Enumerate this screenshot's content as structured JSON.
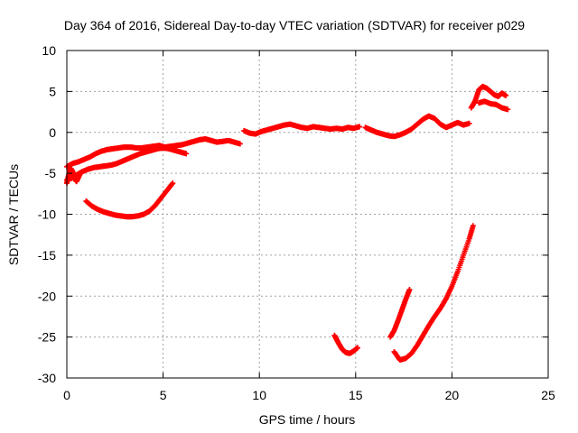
{
  "chart_data": {
    "type": "scatter",
    "title": "Day 364 of 2016, Sidereal Day-to-day VTEC variation (SDTVAR) for receiver p029",
    "xlabel": "GPS time / hours",
    "ylabel": "SDTVAR / TECUs",
    "xlim": [
      0,
      25
    ],
    "ylim": [
      -30,
      10
    ],
    "xticks": [
      0,
      5,
      10,
      15,
      20,
      25
    ],
    "yticks": [
      -30,
      -25,
      -20,
      -15,
      -10,
      -5,
      0,
      5,
      10
    ],
    "grid": true,
    "marker": "plus",
    "color": "#ff0000",
    "series": [
      {
        "segments": [
          {
            "x": [
              0,
              0.3,
              0.6,
              0.9,
              1.2,
              1.5,
              1.8,
              2.1,
              2.4,
              2.7,
              3.0,
              3.3,
              3.6,
              3.9,
              4.2,
              4.5,
              4.8,
              5.1,
              5.4,
              5.7,
              6.0,
              6.3,
              6.6,
              6.9,
              7.2,
              7.5,
              7.8,
              8.1,
              8.4,
              8.7,
              9.0
            ],
            "y": [
              -4.2,
              -3.8,
              -3.6,
              -3.3,
              -3.0,
              -2.6,
              -2.3,
              -2.1,
              -2.0,
              -1.9,
              -1.8,
              -1.8,
              -1.9,
              -1.9,
              -1.8,
              -1.7,
              -1.6,
              -1.8,
              -1.7,
              -1.6,
              -1.5,
              -1.3,
              -1.1,
              -0.9,
              -0.8,
              -1.0,
              -1.2,
              -1.1,
              -1.0,
              -1.2,
              -1.4
            ]
          },
          {
            "x": [
              0,
              0.25,
              0.5,
              0.8,
              1.1,
              1.4,
              1.7,
              2.0,
              2.3,
              2.6,
              2.9,
              3.2,
              3.5,
              3.8,
              4.1,
              4.4,
              4.7,
              5.0,
              5.3,
              5.6,
              5.9,
              6.2
            ],
            "y": [
              -5.8,
              -5.6,
              -5.2,
              -4.8,
              -4.5,
              -4.3,
              -4.2,
              -4.1,
              -4.0,
              -3.8,
              -3.5,
              -3.2,
              -2.9,
              -2.6,
              -2.4,
              -2.2,
              -2.0,
              -1.9,
              -2.0,
              -2.2,
              -2.4,
              -2.6
            ]
          },
          {
            "x": [
              0,
              0.1,
              0.2,
              0.3,
              0.4,
              0.5,
              0.6,
              0.7
            ],
            "y": [
              -6.2,
              -5.2,
              -4.4,
              -4.8,
              -5.6,
              -6.0,
              -5.5,
              -5.0
            ]
          },
          {
            "x": [
              1.0,
              1.3,
              1.6,
              1.9,
              2.2,
              2.5,
              2.8,
              3.1,
              3.4,
              3.7,
              4.0,
              4.3,
              4.6,
              4.9,
              5.2,
              5.5
            ],
            "y": [
              -8.4,
              -9.0,
              -9.4,
              -9.7,
              -9.9,
              -10.1,
              -10.2,
              -10.3,
              -10.3,
              -10.2,
              -10.0,
              -9.6,
              -8.9,
              -8.0,
              -7.1,
              -6.2
            ]
          },
          {
            "x": [
              9.2,
              9.5,
              9.8,
              10.1,
              10.4,
              10.7,
              11.0,
              11.3,
              11.6,
              11.9,
              12.2,
              12.5,
              12.8,
              13.1,
              13.4,
              13.7,
              14.0,
              14.3,
              14.6,
              14.9,
              15.2
            ],
            "y": [
              0.2,
              -0.1,
              -0.2,
              0.1,
              0.3,
              0.5,
              0.7,
              0.9,
              1.0,
              0.8,
              0.6,
              0.5,
              0.7,
              0.6,
              0.5,
              0.4,
              0.5,
              0.4,
              0.6,
              0.5,
              0.7
            ]
          },
          {
            "x": [
              15.5,
              15.8,
              16.1,
              16.4,
              16.7,
              17.0,
              17.3,
              17.6,
              17.9,
              18.2,
              18.5,
              18.8,
              19.1,
              19.4,
              19.7,
              20.0,
              20.3,
              20.6,
              20.9
            ],
            "y": [
              0.6,
              0.3,
              0.0,
              -0.2,
              -0.4,
              -0.5,
              -0.3,
              0.0,
              0.4,
              1.0,
              1.6,
              2.0,
              1.7,
              1.0,
              0.6,
              0.9,
              1.2,
              0.9,
              1.1
            ]
          },
          {
            "x": [
              21.0,
              21.2,
              21.4,
              21.6,
              21.8,
              22.0,
              22.2,
              22.4,
              22.6,
              22.8
            ],
            "y": [
              3.0,
              3.8,
              5.2,
              5.6,
              5.4,
              5.0,
              4.6,
              4.4,
              4.8,
              4.5
            ]
          },
          {
            "x": [
              21.4,
              21.7,
              22.0,
              22.3,
              22.6,
              22.9
            ],
            "y": [
              3.6,
              3.8,
              3.5,
              3.4,
              3.0,
              2.8
            ]
          },
          {
            "x": [
              13.9,
              14.1,
              14.3,
              14.5,
              14.7,
              14.9,
              15.1
            ],
            "y": [
              -24.8,
              -25.7,
              -26.5,
              -26.9,
              -27.0,
              -26.7,
              -26.3
            ]
          },
          {
            "x": [
              16.8,
              17.0,
              17.2,
              17.4,
              17.6,
              17.8
            ],
            "y": [
              -25.0,
              -24.2,
              -23.0,
              -21.7,
              -20.4,
              -19.2
            ]
          },
          {
            "x": [
              17.0,
              17.3,
              17.6,
              17.9,
              18.2,
              18.5,
              18.8,
              19.1,
              19.4,
              19.7,
              20.0,
              20.3,
              20.6,
              20.9,
              21.1
            ],
            "y": [
              -26.8,
              -27.8,
              -27.6,
              -27.0,
              -26.0,
              -24.8,
              -23.6,
              -22.5,
              -21.5,
              -20.3,
              -18.8,
              -17.0,
              -15.0,
              -13.0,
              -11.4
            ]
          }
        ]
      }
    ]
  }
}
